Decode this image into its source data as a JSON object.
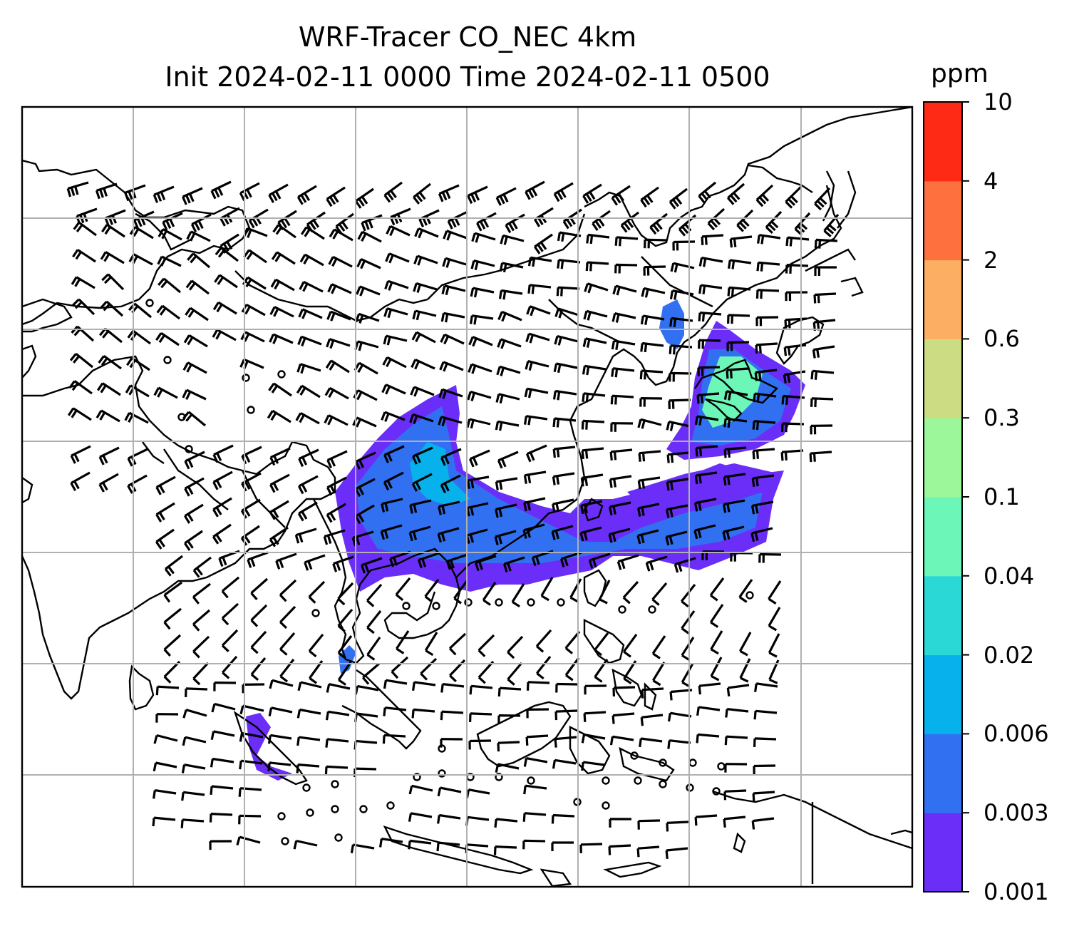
{
  "title": {
    "line1": "WRF-Tracer CO_NEC 4km",
    "line2": "Init 2024-02-11 0000 Time 2024-02-11 0500"
  },
  "colorbar": {
    "unit": "ppm",
    "levels": [
      "0.001",
      "0.003",
      "0.006",
      "0.02",
      "0.04",
      "0.1",
      "0.3",
      "0.6",
      "2",
      "4",
      "10"
    ],
    "colors": [
      "#6a2ef8",
      "#3270f2",
      "#06b1ec",
      "#2ad9d6",
      "#6cf7b8",
      "#9cf79a",
      "#ccdc82",
      "#fcae62",
      "#fe703e",
      "#fe2a15"
    ]
  },
  "map": {
    "gridlines": true,
    "coastline_color": "#000000",
    "tracer_colors": {
      "low": "#6a2ef8",
      "mid": "#3270f2",
      "high": "#06b1ec",
      "peak": "#6cf7b8"
    }
  }
}
